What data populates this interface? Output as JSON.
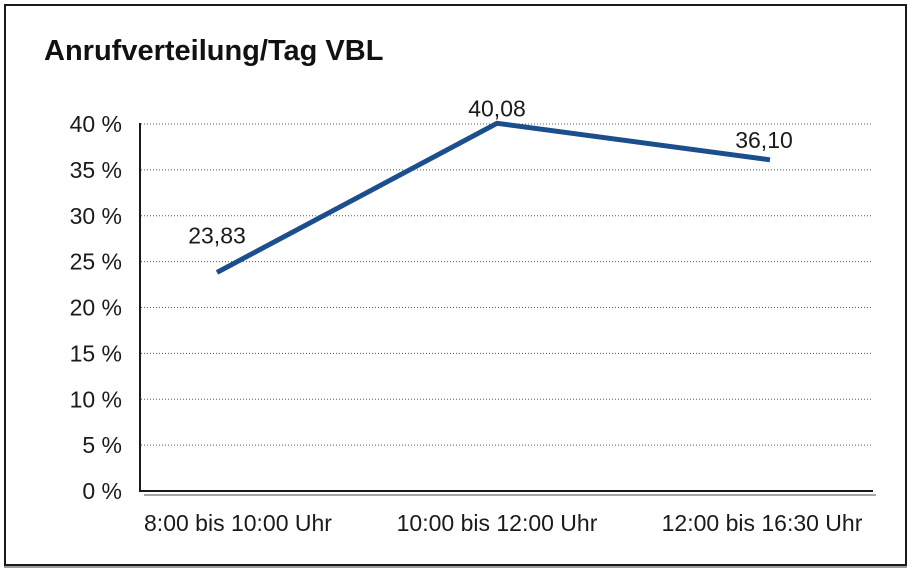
{
  "frame": {
    "background": "#ffffff",
    "border_color": "#1a1a1a",
    "shadow_color": "#9c9c9c"
  },
  "chart_data": {
    "type": "line",
    "title": "Anrufverteilung/Tag VBL",
    "categories": [
      "8:00 bis 10:00 Uhr",
      "10:00 bis 12:00 Uhr",
      "12:00 bis 16:30 Uhr"
    ],
    "series": [
      {
        "values": [
          23.83,
          40.08,
          36.1
        ],
        "point_labels": [
          "23,83",
          "40,08",
          "36,10"
        ],
        "color": "#1a4e8c"
      }
    ],
    "ylim": [
      0,
      40
    ],
    "ytick_values": [
      0,
      5,
      10,
      15,
      20,
      25,
      30,
      35,
      40
    ],
    "ytick_labels": [
      "0 %",
      "5 %",
      "10 %",
      "15 %",
      "20 %",
      "25 %",
      "30 %",
      "35 %",
      "40 %"
    ],
    "grid": "horizontal-dotted",
    "legend": "none",
    "gridline_color": "#595959",
    "axis_color": "#1a1a1a",
    "axis_shadow_color": "#a6a6a6",
    "label_color": "#1a1a1a"
  }
}
